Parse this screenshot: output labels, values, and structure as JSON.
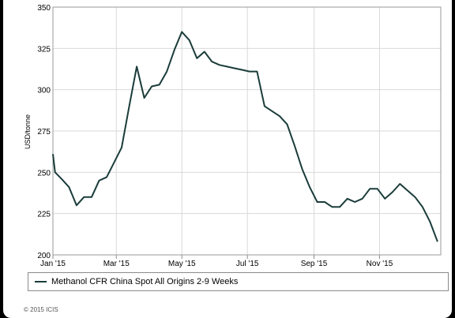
{
  "chart_data": {
    "type": "line",
    "title": "",
    "xlabel": "",
    "ylabel": "USD/tonne",
    "ylim": [
      200,
      350
    ],
    "yticks": [
      200,
      225,
      250,
      275,
      300,
      325,
      350
    ],
    "xlim": [
      "2015-01-01",
      "2015-12-28"
    ],
    "xtick_labels": [
      "Jan '15",
      "Mar '15",
      "May '15",
      "Jul '15",
      "Sep '15",
      "Nov '15"
    ],
    "xtick_dates": [
      "2015-01-01",
      "2015-03-01",
      "2015-05-01",
      "2015-07-01",
      "2015-09-01",
      "2015-11-01"
    ],
    "grid": true,
    "legend_position": "bottom",
    "series": [
      {
        "name": "Methanol CFR China Spot All Origins 2-9 Weeks",
        "color": "#1a3c3a",
        "x": [
          "2015-01-01",
          "2015-01-03",
          "2015-01-09",
          "2015-01-16",
          "2015-01-23",
          "2015-01-30",
          "2015-02-06",
          "2015-02-13",
          "2015-02-20",
          "2015-02-27",
          "2015-03-06",
          "2015-03-13",
          "2015-03-20",
          "2015-03-27",
          "2015-04-03",
          "2015-04-10",
          "2015-04-17",
          "2015-04-24",
          "2015-05-01",
          "2015-05-08",
          "2015-05-15",
          "2015-05-22",
          "2015-05-29",
          "2015-06-05",
          "2015-06-12",
          "2015-06-19",
          "2015-06-26",
          "2015-07-03",
          "2015-07-10",
          "2015-07-17",
          "2015-07-24",
          "2015-07-31",
          "2015-08-07",
          "2015-08-14",
          "2015-08-21",
          "2015-08-28",
          "2015-09-04",
          "2015-09-11",
          "2015-09-18",
          "2015-09-25",
          "2015-10-02",
          "2015-10-09",
          "2015-10-16",
          "2015-10-23",
          "2015-10-30",
          "2015-11-06",
          "2015-11-13",
          "2015-11-20",
          "2015-11-27",
          "2015-12-04",
          "2015-12-11",
          "2015-12-18",
          "2015-12-25"
        ],
        "values": [
          261,
          250,
          246,
          241,
          230,
          235,
          235,
          245,
          247,
          256,
          265,
          290,
          314,
          295,
          302,
          303,
          311,
          324,
          335,
          330,
          319,
          323,
          317,
          315,
          314,
          313,
          312,
          311,
          311,
          290,
          287,
          284,
          279,
          266,
          252,
          241,
          232,
          232,
          229,
          229,
          234,
          232,
          234,
          240,
          240,
          234,
          238,
          243,
          239,
          235,
          229,
          220,
          208
        ]
      }
    ]
  },
  "legend": {
    "label": "Methanol CFR China Spot All Origins 2-9 Weeks"
  },
  "footer": {
    "copyright": "© 2015 ICIS"
  }
}
